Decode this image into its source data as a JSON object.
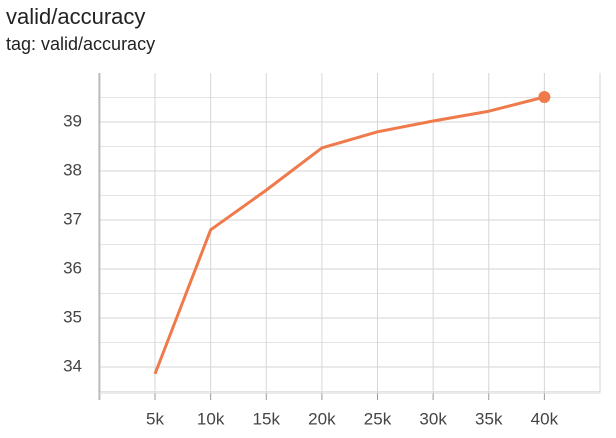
{
  "chart_data": {
    "type": "line",
    "title": "valid/accuracy",
    "subtitle": "tag: valid/accuracy",
    "x": [
      5000,
      10000,
      15000,
      20000,
      25000,
      30000,
      35000,
      40000
    ],
    "series": [
      {
        "name": "valid/accuracy",
        "color": "#ef7a4c",
        "values": [
          33.86,
          36.8,
          37.61,
          38.47,
          38.8,
          39.02,
          39.22,
          39.51
        ]
      }
    ],
    "xlim": [
      0,
      45000
    ],
    "xticks": [
      {
        "value": 5000,
        "label": "5k"
      },
      {
        "value": 10000,
        "label": "10k"
      },
      {
        "value": 15000,
        "label": "15k"
      },
      {
        "value": 20000,
        "label": "20k"
      },
      {
        "value": 25000,
        "label": "25k"
      },
      {
        "value": 30000,
        "label": "30k"
      },
      {
        "value": 35000,
        "label": "35k"
      },
      {
        "value": 40000,
        "label": "40k"
      }
    ],
    "ylim": [
      33.47,
      40
    ],
    "yticks": [
      34,
      35,
      36,
      37,
      38,
      39
    ],
    "y_minor_grid": [
      33.5,
      34.5,
      35.5,
      36.5,
      37.5,
      38.5,
      39.5
    ],
    "grid": true
  }
}
